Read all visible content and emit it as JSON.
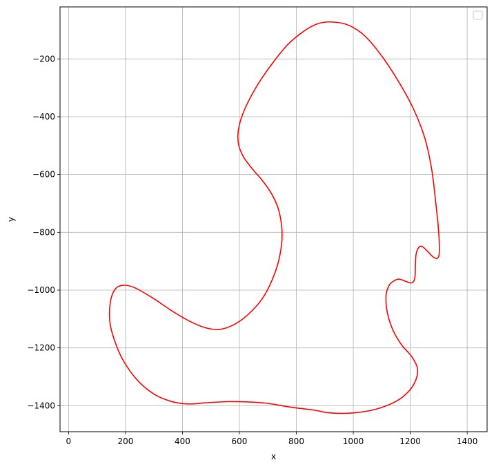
{
  "chart_data": {
    "type": "line",
    "title": "",
    "xlabel": "x",
    "ylabel": "y",
    "xlim": [
      -30,
      1470
    ],
    "ylim": [
      -1490,
      -20
    ],
    "x_ticks": [
      0,
      200,
      400,
      600,
      800,
      1000,
      1200,
      1400
    ],
    "x_tick_labels": [
      "0",
      "200",
      "400",
      "600",
      "800",
      "1000",
      "1200",
      "1400"
    ],
    "y_ticks": [
      -200,
      -400,
      -600,
      -800,
      -1000,
      -1200,
      -1400
    ],
    "y_tick_labels": [
      "−200",
      "−400",
      "−600",
      "−800",
      "−1000",
      "−1200",
      "−1400"
    ],
    "grid": true,
    "legend": {
      "placement": "top-right",
      "entries": []
    },
    "series": [
      {
        "color": "#ff0000",
        "closed": true,
        "points": [
          [
            915,
            -72
          ],
          [
            980,
            -82
          ],
          [
            1040,
            -120
          ],
          [
            1100,
            -190
          ],
          [
            1160,
            -280
          ],
          [
            1210,
            -370
          ],
          [
            1250,
            -470
          ],
          [
            1275,
            -580
          ],
          [
            1290,
            -700
          ],
          [
            1300,
            -800
          ],
          [
            1302,
            -870
          ],
          [
            1295,
            -890
          ],
          [
            1280,
            -885
          ],
          [
            1260,
            -865
          ],
          [
            1240,
            -848
          ],
          [
            1228,
            -855
          ],
          [
            1220,
            -880
          ],
          [
            1218,
            -920
          ],
          [
            1216,
            -960
          ],
          [
            1205,
            -975
          ],
          [
            1185,
            -970
          ],
          [
            1160,
            -962
          ],
          [
            1140,
            -970
          ],
          [
            1125,
            -985
          ],
          [
            1115,
            -1020
          ],
          [
            1120,
            -1080
          ],
          [
            1140,
            -1140
          ],
          [
            1170,
            -1190
          ],
          [
            1205,
            -1230
          ],
          [
            1225,
            -1270
          ],
          [
            1220,
            -1310
          ],
          [
            1195,
            -1350
          ],
          [
            1150,
            -1385
          ],
          [
            1080,
            -1412
          ],
          [
            1000,
            -1425
          ],
          [
            920,
            -1425
          ],
          [
            860,
            -1415
          ],
          [
            780,
            -1405
          ],
          [
            700,
            -1392
          ],
          [
            630,
            -1387
          ],
          [
            560,
            -1386
          ],
          [
            480,
            -1390
          ],
          [
            420,
            -1394
          ],
          [
            360,
            -1385
          ],
          [
            300,
            -1360
          ],
          [
            240,
            -1310
          ],
          [
            190,
            -1240
          ],
          [
            160,
            -1170
          ],
          [
            145,
            -1110
          ],
          [
            147,
            -1040
          ],
          [
            165,
            -995
          ],
          [
            195,
            -983
          ],
          [
            235,
            -993
          ],
          [
            300,
            -1030
          ],
          [
            360,
            -1070
          ],
          [
            420,
            -1105
          ],
          [
            480,
            -1130
          ],
          [
            530,
            -1136
          ],
          [
            580,
            -1120
          ],
          [
            630,
            -1085
          ],
          [
            680,
            -1030
          ],
          [
            715,
            -965
          ],
          [
            740,
            -890
          ],
          [
            750,
            -810
          ],
          [
            740,
            -730
          ],
          [
            715,
            -670
          ],
          [
            680,
            -620
          ],
          [
            645,
            -580
          ],
          [
            615,
            -540
          ],
          [
            598,
            -500
          ],
          [
            595,
            -460
          ],
          [
            605,
            -410
          ],
          [
            630,
            -350
          ],
          [
            670,
            -280
          ],
          [
            720,
            -210
          ],
          [
            770,
            -150
          ],
          [
            825,
            -105
          ],
          [
            870,
            -80
          ]
        ]
      }
    ]
  }
}
